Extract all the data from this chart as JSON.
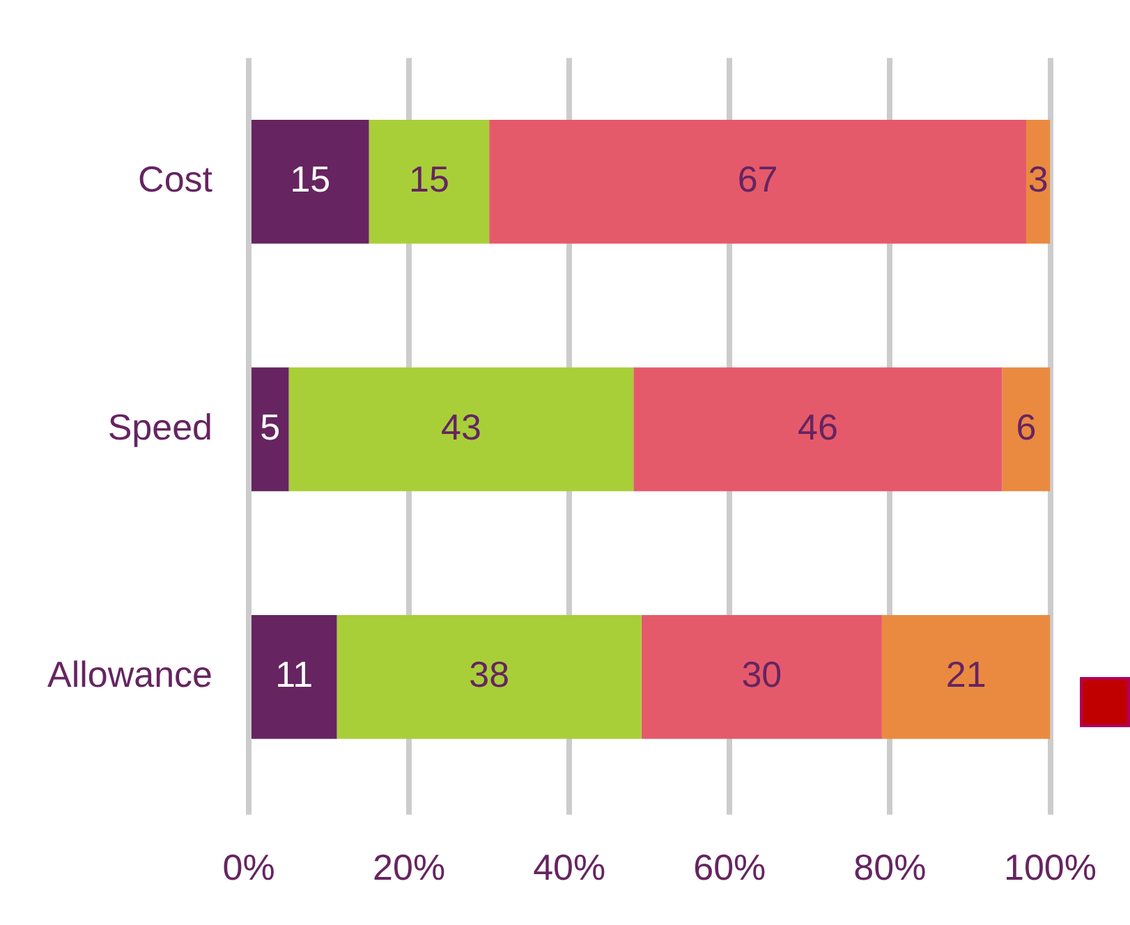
{
  "chart_data": {
    "type": "bar",
    "orientation": "horizontal",
    "stacked": true,
    "categories": [
      "Cost",
      "Speed",
      "Allowance"
    ],
    "series": [
      {
        "color": "#662461",
        "values": [
          15,
          5,
          11
        ]
      },
      {
        "color": "#a8cf38",
        "values": [
          15,
          43,
          38
        ]
      },
      {
        "color": "#e55a6a",
        "values": [
          67,
          46,
          30
        ]
      },
      {
        "color": "#ea8a40",
        "values": [
          3,
          6,
          21
        ]
      }
    ],
    "xlim": [
      0,
      100
    ],
    "xticks": [
      {
        "value": 0,
        "label": "0%"
      },
      {
        "value": 20,
        "label": "20%"
      },
      {
        "value": 40,
        "label": "40%"
      },
      {
        "value": 60,
        "label": "60%"
      },
      {
        "value": 80,
        "label": "80%"
      },
      {
        "value": 100,
        "label": "100%"
      }
    ],
    "grid": "x",
    "legend": false,
    "data_labels": true
  }
}
